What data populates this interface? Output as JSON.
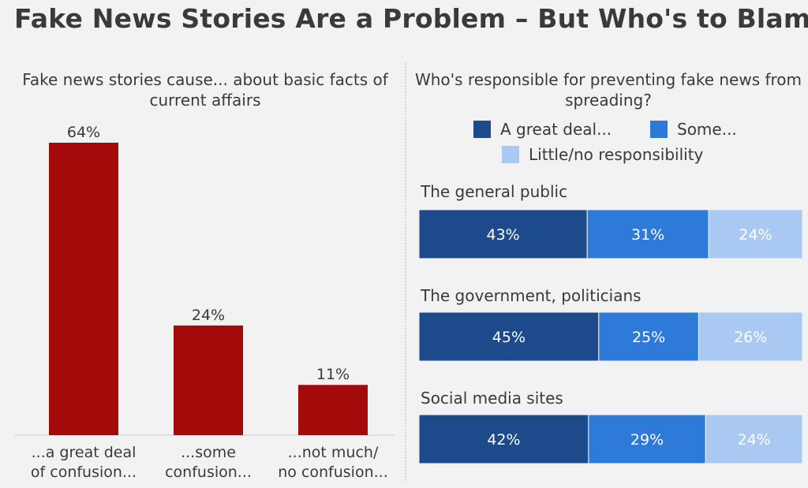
{
  "title": "Fake News Stories Are a Problem – But Who's to Blame?",
  "colors": {
    "bar_red": "#a30a0a",
    "great_deal": "#1d4a8a",
    "some": "#2e7ad9",
    "little": "#a9c9f2"
  },
  "chart_data": [
    {
      "type": "bar",
      "title": "Fake news stories cause... about basic facts of current affairs",
      "categories": [
        [
          "...a great deal",
          "of confusion..."
        ],
        [
          "...some",
          "confusion..."
        ],
        [
          "...not much/",
          "no confusion..."
        ]
      ],
      "values": [
        64,
        24,
        11
      ],
      "value_labels": [
        "64%",
        "24%",
        "11%"
      ],
      "ylim": [
        0,
        64
      ],
      "grid": false
    },
    {
      "type": "bar",
      "orientation": "horizontal",
      "stacked": true,
      "title": "Who's responsible for preventing fake news from spreading?",
      "categories": [
        "The general public",
        "The government, politicians",
        "Social media sites"
      ],
      "series": [
        {
          "name": "A great deal...",
          "values": [
            43,
            45,
            42
          ],
          "labels": [
            "43%",
            "45%",
            "42%"
          ]
        },
        {
          "name": "Some...",
          "values": [
            31,
            25,
            29
          ],
          "labels": [
            "31%",
            "25%",
            "29%"
          ]
        },
        {
          "name": "Little/no responsibility",
          "values": [
            24,
            26,
            24
          ],
          "labels": [
            "24%",
            "26%",
            "24%"
          ]
        }
      ],
      "legend": "top",
      "grid": false
    }
  ]
}
